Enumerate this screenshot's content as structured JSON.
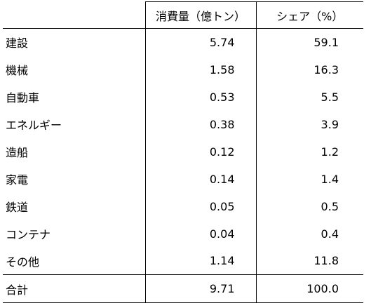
{
  "table": {
    "headers": {
      "label": "",
      "consumption": "消費量（億トン）",
      "share": "シェア（%）"
    },
    "rows": [
      {
        "label": "建設",
        "consumption": "5.74",
        "share": "59.1"
      },
      {
        "label": "機械",
        "consumption": "1.58",
        "share": "16.3"
      },
      {
        "label": "自動車",
        "consumption": "0.53",
        "share": "5.5"
      },
      {
        "label": "エネルギー",
        "consumption": "0.38",
        "share": "3.9"
      },
      {
        "label": "造船",
        "consumption": "0.12",
        "share": "1.2"
      },
      {
        "label": "家電",
        "consumption": "0.14",
        "share": "1.4"
      },
      {
        "label": "鉄道",
        "consumption": "0.05",
        "share": "0.5"
      },
      {
        "label": "コンテナ",
        "consumption": "0.04",
        "share": "0.4"
      },
      {
        "label": "その他",
        "consumption": "1.14",
        "share": "11.8"
      }
    ],
    "total": {
      "label": "合計",
      "consumption": "9.71",
      "share": "100.0"
    }
  }
}
